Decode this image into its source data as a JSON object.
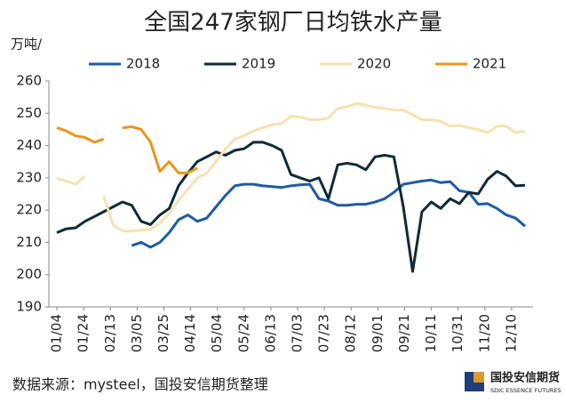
{
  "chart_data": {
    "type": "line",
    "title": "全国247家钢厂日均铁水产量",
    "y_label": "万吨/",
    "x": [
      0,
      7,
      14,
      21,
      28,
      35,
      42,
      49,
      56,
      63,
      70,
      77,
      84,
      91,
      98,
      105,
      112,
      119,
      126,
      133,
      140,
      147,
      154,
      161,
      168,
      175,
      182,
      189,
      196,
      203,
      210,
      217,
      224,
      231,
      238,
      245,
      252,
      259,
      266,
      273,
      280,
      287,
      294,
      301,
      308,
      315,
      322,
      329,
      336,
      343,
      350
    ],
    "xlim": [
      -6,
      356
    ],
    "xticks": [
      {
        "value": 0,
        "label": "01/04"
      },
      {
        "value": 20,
        "label": "01/24"
      },
      {
        "value": 40,
        "label": "02/13"
      },
      {
        "value": 60,
        "label": "03/05"
      },
      {
        "value": 80,
        "label": "03/25"
      },
      {
        "value": 100,
        "label": "04/14"
      },
      {
        "value": 120,
        "label": "05/04"
      },
      {
        "value": 140,
        "label": "05/24"
      },
      {
        "value": 160,
        "label": "06/13"
      },
      {
        "value": 180,
        "label": "07/03"
      },
      {
        "value": 200,
        "label": "07/23"
      },
      {
        "value": 220,
        "label": "08/12"
      },
      {
        "value": 240,
        "label": "09/01"
      },
      {
        "value": 260,
        "label": "09/21"
      },
      {
        "value": 280,
        "label": "10/11"
      },
      {
        "value": 300,
        "label": "10/31"
      },
      {
        "value": 320,
        "label": "11/20"
      },
      {
        "value": 340,
        "label": "12/10"
      }
    ],
    "ylim": [
      190,
      260
    ],
    "yticks": [
      190,
      200,
      210,
      220,
      230,
      240,
      250,
      260
    ],
    "series": [
      {
        "name": "2018",
        "color": "#1f5aa6",
        "values": [
          null,
          null,
          null,
          null,
          null,
          null,
          null,
          null,
          209,
          210,
          208.5,
          210,
          213,
          217,
          218.5,
          216.5,
          217.5,
          221,
          224.5,
          227.5,
          228,
          228,
          227.5,
          227.3,
          227,
          227.5,
          227.8,
          228,
          223.5,
          222.8,
          221.5,
          221.5,
          221.8,
          221.8,
          222.5,
          223.5,
          225.5,
          228,
          228.5,
          229,
          229.3,
          228.5,
          228.8,
          226,
          225.5,
          221.8,
          222,
          220.5,
          218.5,
          217.5,
          215
        ]
      },
      {
        "name": "2019",
        "color": "#0f2b37",
        "values": [
          213,
          214.2,
          214.5,
          216.5,
          218,
          219.5,
          221,
          222.5,
          221.5,
          216.5,
          215.5,
          218.5,
          220.5,
          227.5,
          231.5,
          235,
          236.5,
          238,
          237,
          238.5,
          239,
          241,
          241,
          240,
          238.5,
          231,
          230,
          229,
          230,
          223.5,
          234,
          234.5,
          234,
          232.5,
          236.5,
          237,
          236.5,
          221,
          201,
          219.5,
          222.5,
          220.5,
          223.5,
          222,
          225.5,
          225,
          229.5,
          232,
          230.5,
          227.5,
          227.7
        ]
      },
      {
        "name": "2020",
        "color": "#f5e2b2",
        "values": [
          229.8,
          229,
          228,
          230.5,
          null,
          224.3,
          215.5,
          213.5,
          213.5,
          213.8,
          214,
          216,
          219,
          223,
          226.5,
          230,
          231.5,
          235,
          239,
          242,
          243,
          244.5,
          245.5,
          246.5,
          246.8,
          249,
          248.8,
          248,
          248,
          248.5,
          251.5,
          252,
          253,
          252.5,
          251.8,
          251.5,
          251,
          251,
          249.5,
          248,
          248,
          247.5,
          246,
          246.2,
          245.5,
          245,
          244,
          246,
          246,
          244,
          244.5
        ]
      },
      {
        "name": "2021",
        "color": "#e8961e",
        "values": [
          245.5,
          244.5,
          243,
          242.5,
          241,
          242,
          null,
          245.5,
          245.8,
          245,
          241,
          232,
          235,
          231.5,
          231.5,
          233,
          null,
          null,
          null,
          null,
          null,
          null,
          null,
          null,
          null,
          null,
          null,
          null,
          null,
          null,
          null,
          null,
          null,
          null,
          null,
          null,
          null,
          null,
          null,
          null,
          null,
          null,
          null,
          null,
          null,
          null,
          null,
          null,
          null,
          null,
          null
        ]
      }
    ]
  },
  "footer": {
    "source": "数据来源：mysteel，国投安信期货整理",
    "logo_cn": "国投安信期货",
    "logo_en": "SDIC ESSENCE FUTURES"
  }
}
